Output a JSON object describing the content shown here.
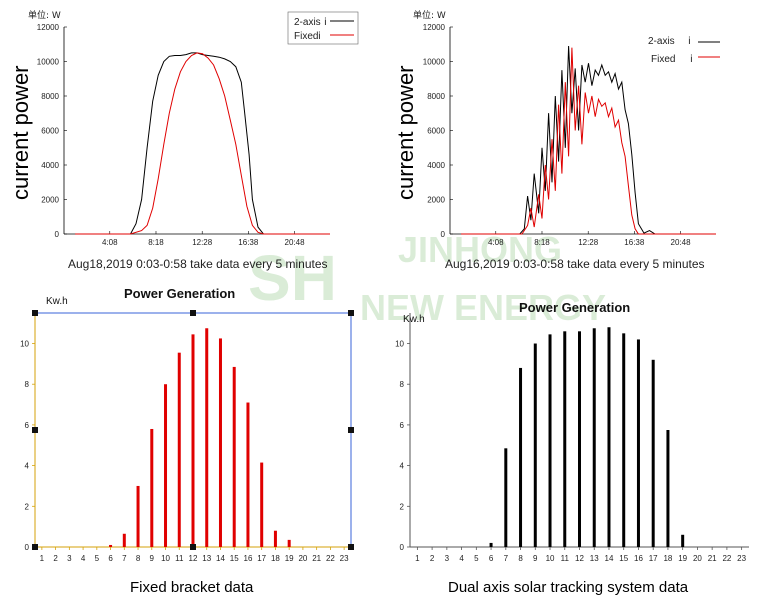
{
  "watermark": {
    "line1": "JINHONG",
    "line2": "NEW ENERGY",
    "logo": "SH"
  },
  "colors": {
    "two_axis": "#000000",
    "fixed": "#e00000",
    "blue_frame": "#3a63d8",
    "gold_axis": "#d4a20a"
  },
  "chart_data": [
    {
      "type": "line",
      "id": "top-left",
      "unit_label": "单位: W",
      "ylabel": "current power",
      "caption": "Aug18,2019 0:03-0:58 take data every 5 minutes",
      "yticks": [
        0,
        2000,
        4000,
        6000,
        8000,
        10000,
        12000
      ],
      "ylim": [
        0,
        12000
      ],
      "xticks": [
        "4:08",
        "8:18",
        "12:28",
        "16:38",
        "20:48"
      ],
      "xlim": [
        0,
        24
      ],
      "xtick_positions": [
        4.13,
        8.3,
        12.47,
        16.63,
        20.8
      ],
      "legend": [
        {
          "label": "2-axis",
          "marker": "ⅰ"
        },
        {
          "label": "Fixed",
          "marker": "ⅰ"
        }
      ],
      "series": [
        {
          "name": "2-axis",
          "color": "#000000",
          "x": [
            1,
            3,
            5,
            6,
            6.5,
            7,
            7.5,
            8,
            8.5,
            9,
            9.5,
            10,
            10.5,
            11,
            11.5,
            12,
            12.5,
            13,
            13.5,
            14,
            14.5,
            15,
            15.5,
            16,
            16.3,
            16.7,
            17,
            17.5,
            18,
            18.5,
            19,
            20,
            22,
            24
          ],
          "y": [
            0,
            0,
            0,
            0,
            600,
            2000,
            5000,
            7700,
            9200,
            10000,
            10300,
            10350,
            10350,
            10400,
            10500,
            10500,
            10400,
            10350,
            10300,
            10250,
            10150,
            10000,
            9700,
            8800,
            7000,
            4600,
            2000,
            400,
            0,
            0,
            0,
            0,
            0,
            0
          ]
        },
        {
          "name": "Fixed",
          "color": "#e00000",
          "x": [
            1,
            3,
            5,
            6,
            7,
            7.5,
            8,
            8.5,
            9,
            9.5,
            10,
            10.5,
            11,
            11.5,
            12,
            12.5,
            13,
            13.5,
            14,
            14.5,
            15,
            15.5,
            16,
            16.5,
            17,
            17.5,
            18,
            19,
            22,
            24
          ],
          "y": [
            0,
            0,
            0,
            0,
            200,
            500,
            1500,
            3200,
            5200,
            7000,
            8400,
            9400,
            10000,
            10350,
            10500,
            10450,
            10200,
            9800,
            9000,
            8000,
            6600,
            5200,
            3400,
            1600,
            500,
            100,
            0,
            0,
            0,
            0
          ]
        }
      ]
    },
    {
      "type": "line",
      "id": "top-right",
      "unit_label": "单位: W",
      "ylabel": "current power",
      "caption": "Aug16,2019 0:03-0:58  take data every 5 minutes",
      "yticks": [
        0,
        2000,
        4000,
        6000,
        8000,
        10000,
        12000
      ],
      "ylim": [
        0,
        12000
      ],
      "xticks": [
        "4:08",
        "8:18",
        "12:28",
        "16:38",
        "20:48"
      ],
      "xlim": [
        0,
        24
      ],
      "xtick_positions": [
        4.13,
        8.3,
        12.47,
        16.63,
        20.8
      ],
      "legend": [
        {
          "label": "2-axis",
          "marker": "ⅰ"
        },
        {
          "label": "Fixed",
          "marker": "ⅰ"
        }
      ],
      "series": [
        {
          "name": "2-axis",
          "color": "#000000",
          "x": [
            1,
            4,
            5.5,
            6.3,
            6.7,
            7,
            7.3,
            7.6,
            8,
            8.3,
            8.6,
            8.9,
            9.2,
            9.5,
            9.8,
            10.1,
            10.4,
            10.7,
            11,
            11.3,
            11.6,
            11.9,
            12.2,
            12.5,
            12.8,
            13.1,
            13.4,
            13.7,
            14,
            14.3,
            14.6,
            14.9,
            15.2,
            15.5,
            15.8,
            16.1,
            16.4,
            16.7,
            17,
            17.5,
            18,
            18.5,
            19,
            21,
            24
          ],
          "y": [
            0,
            0,
            0,
            0,
            300,
            2200,
            800,
            3500,
            1200,
            5000,
            2500,
            7000,
            3000,
            8000,
            4200,
            9500,
            5000,
            10900,
            7000,
            9600,
            6000,
            9800,
            8800,
            9900,
            8600,
            9500,
            9200,
            9800,
            9200,
            9400,
            8800,
            9300,
            8400,
            8800,
            7200,
            6400,
            4600,
            2400,
            600,
            50,
            200,
            0,
            0,
            0,
            0
          ]
        },
        {
          "name": "Fixed",
          "color": "#e00000",
          "x": [
            1,
            4,
            5.5,
            6.5,
            7,
            7.3,
            7.6,
            8,
            8.3,
            8.6,
            8.9,
            9.2,
            9.5,
            9.8,
            10.1,
            10.4,
            10.7,
            11,
            11.3,
            11.6,
            11.9,
            12.2,
            12.5,
            12.8,
            13.1,
            13.4,
            13.7,
            14,
            14.3,
            14.6,
            14.9,
            15.2,
            15.5,
            15.8,
            16.1,
            16.4,
            16.7,
            17,
            17.5,
            18,
            19,
            21,
            24
          ],
          "y": [
            0,
            0,
            0,
            0,
            500,
            1500,
            400,
            2300,
            900,
            4000,
            2000,
            5500,
            2500,
            7500,
            3500,
            8800,
            4500,
            10800,
            6000,
            8600,
            5200,
            8200,
            7000,
            8000,
            6800,
            7800,
            7400,
            7600,
            6800,
            7300,
            6200,
            6600,
            5300,
            4500,
            2800,
            1100,
            300,
            0,
            0,
            0,
            0,
            0,
            0
          ]
        }
      ]
    },
    {
      "type": "bar",
      "id": "bottom-left",
      "title": "Power Generation",
      "ylabel": "Kw.h",
      "caption": "Fixed bracket data",
      "color": "#e00000",
      "categories": [
        "1",
        "2",
        "3",
        "4",
        "5",
        "6",
        "7",
        "8",
        "9",
        "10",
        "11",
        "12",
        "13",
        "14",
        "15",
        "16",
        "17",
        "18",
        "19",
        "20",
        "21",
        "22",
        "23"
      ],
      "values": [
        0,
        0,
        0,
        0,
        0,
        0.1,
        0.65,
        3.0,
        5.8,
        8.0,
        9.55,
        10.45,
        10.75,
        10.25,
        8.85,
        7.1,
        4.15,
        0.8,
        0.35,
        0,
        0,
        0,
        0
      ],
      "yticks": [
        0,
        2,
        4,
        6,
        8,
        10
      ],
      "ylim": [
        0,
        11.5
      ]
    },
    {
      "type": "bar",
      "id": "bottom-right",
      "title": "Power Generation",
      "ylabel": "Kw.h",
      "caption": "Dual axis solar tracking system data",
      "color": "#000000",
      "categories": [
        "1",
        "2",
        "3",
        "4",
        "5",
        "6",
        "7",
        "8",
        "9",
        "10",
        "11",
        "12",
        "13",
        "14",
        "15",
        "16",
        "17",
        "18",
        "19",
        "20",
        "21",
        "22",
        "23"
      ],
      "values": [
        0,
        0,
        0,
        0,
        0,
        0.2,
        4.85,
        8.8,
        10.0,
        10.45,
        10.6,
        10.6,
        10.75,
        10.8,
        10.5,
        10.2,
        9.2,
        5.75,
        0.6,
        0,
        0,
        0,
        0
      ],
      "yticks": [
        0,
        2,
        4,
        6,
        8,
        10
      ],
      "ylim": [
        0,
        11.5
      ]
    }
  ]
}
